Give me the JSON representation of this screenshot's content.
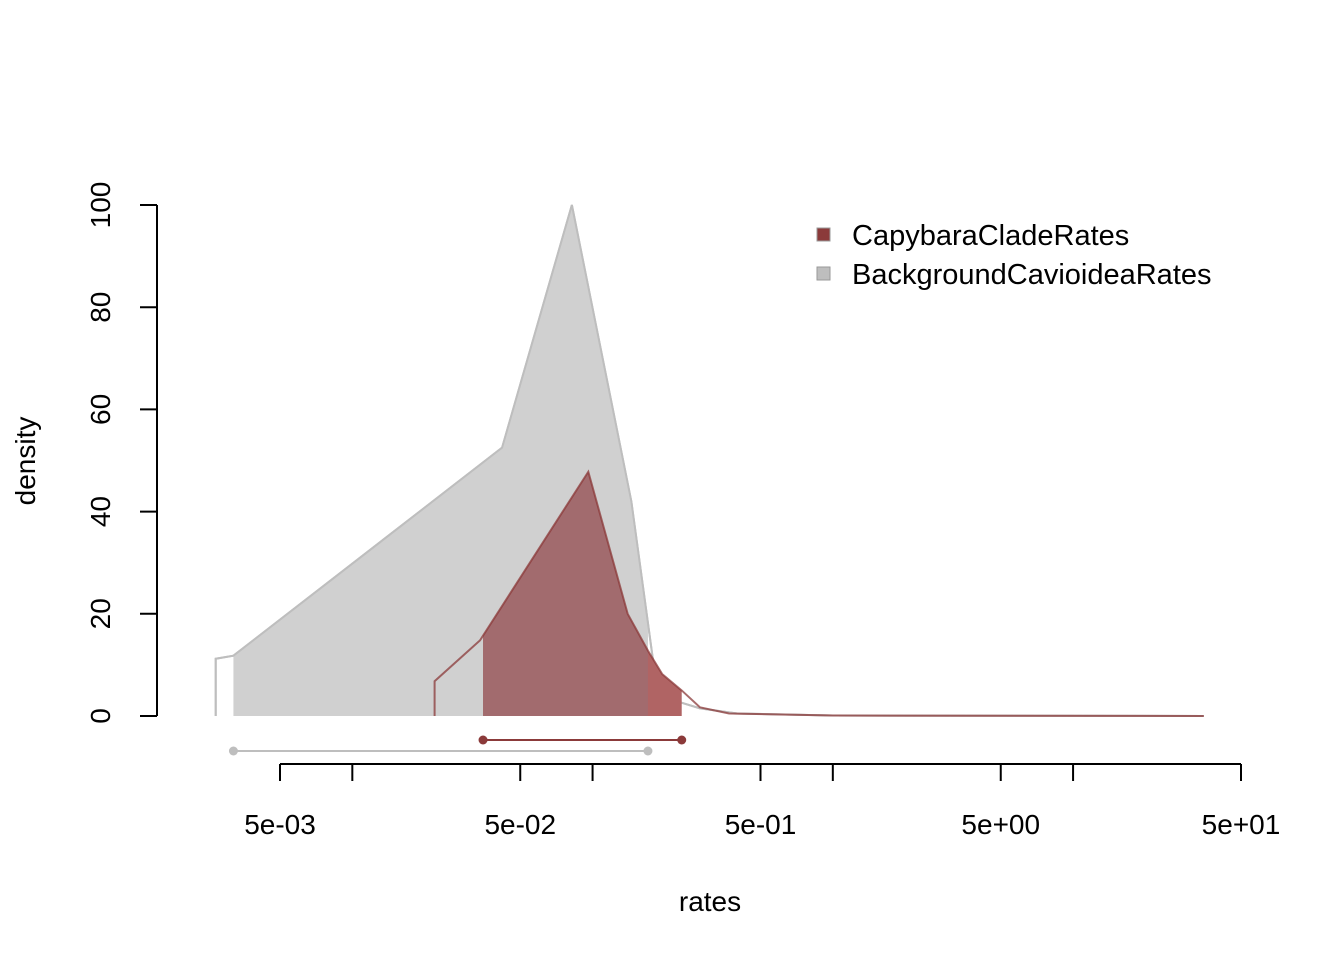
{
  "chart_data": {
    "type": "area",
    "xlabel": "rates",
    "ylabel": "density",
    "x_scale": "log",
    "xlim": [
      0.0023,
      50
    ],
    "ylim": [
      0,
      100
    ],
    "x_ticks": [
      {
        "value": 0.005,
        "label": "5e-03"
      },
      {
        "value": 0.01,
        "label": ""
      },
      {
        "value": 0.05,
        "label": "5e-02"
      },
      {
        "value": 0.1,
        "label": ""
      },
      {
        "value": 0.5,
        "label": "5e-01"
      },
      {
        "value": 1,
        "label": ""
      },
      {
        "value": 5,
        "label": "5e+00"
      },
      {
        "value": 10,
        "label": ""
      },
      {
        "value": 50,
        "label": "5e+01"
      }
    ],
    "y_ticks": [
      0,
      20,
      40,
      60,
      80,
      100
    ],
    "legend_position": "top-right",
    "series": [
      {
        "name": "BackgroundCavioideaRates",
        "color": "#bebebe",
        "fill": "#d0d0d0",
        "density": [
          [
            0.0027,
            0
          ],
          [
            0.0027,
            11.2
          ],
          [
            0.0032,
            11.8
          ],
          [
            0.042,
            52.5
          ],
          [
            0.082,
            100
          ],
          [
            0.145,
            42
          ],
          [
            0.182,
            8
          ],
          [
            0.22,
            3
          ],
          [
            0.28,
            1.5
          ],
          [
            0.4,
            0.5
          ],
          [
            1,
            0.1
          ],
          [
            35,
            0
          ]
        ],
        "hdi": [
          0.0032,
          0.17
        ],
        "hdi_color": "#bebebe"
      },
      {
        "name": "CapybaraCladeRates",
        "color": "#8b3a3a",
        "fill": "#9e6e71",
        "hdi_fill": "#b06464",
        "density": [
          [
            0.022,
            0
          ],
          [
            0.022,
            6.8
          ],
          [
            0.034,
            14.8
          ],
          [
            0.096,
            47.8
          ],
          [
            0.14,
            20
          ],
          [
            0.17,
            12.8
          ],
          [
            0.195,
            8.2
          ],
          [
            0.235,
            5
          ],
          [
            0.28,
            1.7
          ],
          [
            0.37,
            0.5
          ],
          [
            1,
            0.1
          ],
          [
            35,
            0
          ]
        ],
        "hdi": [
          0.035,
          0.235
        ],
        "hdi_color": "#8b3a3a"
      }
    ],
    "legend": [
      {
        "label": "CapybaraCladeRates",
        "color": "#8b3a3a"
      },
      {
        "label": "BackgroundCavioideaRates",
        "color": "#bebebe"
      }
    ]
  }
}
